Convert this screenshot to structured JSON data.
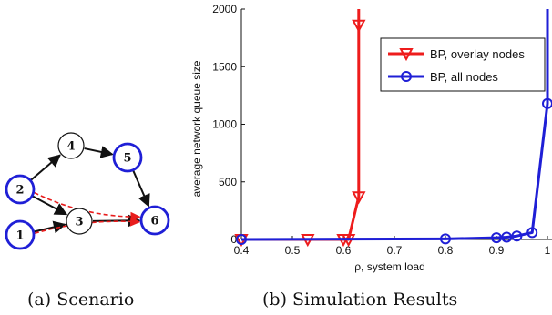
{
  "figure": {
    "subfigure_a": {
      "caption": "(a) Scenario",
      "nodes": [
        {
          "id": "1",
          "style": "blue"
        },
        {
          "id": "2",
          "style": "blue"
        },
        {
          "id": "3",
          "style": "black"
        },
        {
          "id": "4",
          "style": "black"
        },
        {
          "id": "5",
          "style": "blue"
        },
        {
          "id": "6",
          "style": "blue"
        }
      ],
      "edges": [
        {
          "from": "2",
          "to": "4",
          "style": "solid-black"
        },
        {
          "from": "2",
          "to": "3",
          "style": "solid-black"
        },
        {
          "from": "1",
          "to": "3",
          "style": "solid-black"
        },
        {
          "from": "4",
          "to": "5",
          "style": "solid-black"
        },
        {
          "from": "5",
          "to": "6",
          "style": "solid-black"
        },
        {
          "from": "3",
          "to": "6",
          "style": "solid-black"
        },
        {
          "from": "2",
          "to": "6",
          "style": "dashed-red"
        },
        {
          "from": "1",
          "to": "6",
          "style": "dashed-red"
        }
      ]
    },
    "subfigure_b": {
      "caption": "(b) Simulation Results"
    }
  },
  "chart_data": {
    "type": "line",
    "title": "",
    "xlabel": "ρ, system load",
    "ylabel": "average network queue size",
    "xlim": [
      0.4,
      1.0
    ],
    "ylim": [
      0,
      2000
    ],
    "xticks": [
      "0.4",
      "0.5",
      "0.6",
      "0.7",
      "0.8",
      "0.9",
      "1"
    ],
    "yticks": [
      "0",
      "500",
      "1000",
      "1500",
      "2000"
    ],
    "grid": false,
    "legend_position": "top-right",
    "series": [
      {
        "name": "BP, overlay nodes",
        "color": "#ee1c1c",
        "marker": "triangle-down",
        "x": [
          0.4,
          0.53,
          0.6,
          0.61,
          0.63,
          0.63,
          0.63
        ],
        "y": [
          0,
          0,
          0,
          0,
          370,
          1860,
          2000
        ]
      },
      {
        "name": "BP, all nodes",
        "color": "#1f1fd6",
        "marker": "circle",
        "x": [
          0.4,
          0.8,
          0.9,
          0.92,
          0.94,
          0.97,
          1.0,
          1.0
        ],
        "y": [
          0,
          5,
          15,
          20,
          30,
          60,
          1180,
          2000
        ]
      }
    ]
  }
}
